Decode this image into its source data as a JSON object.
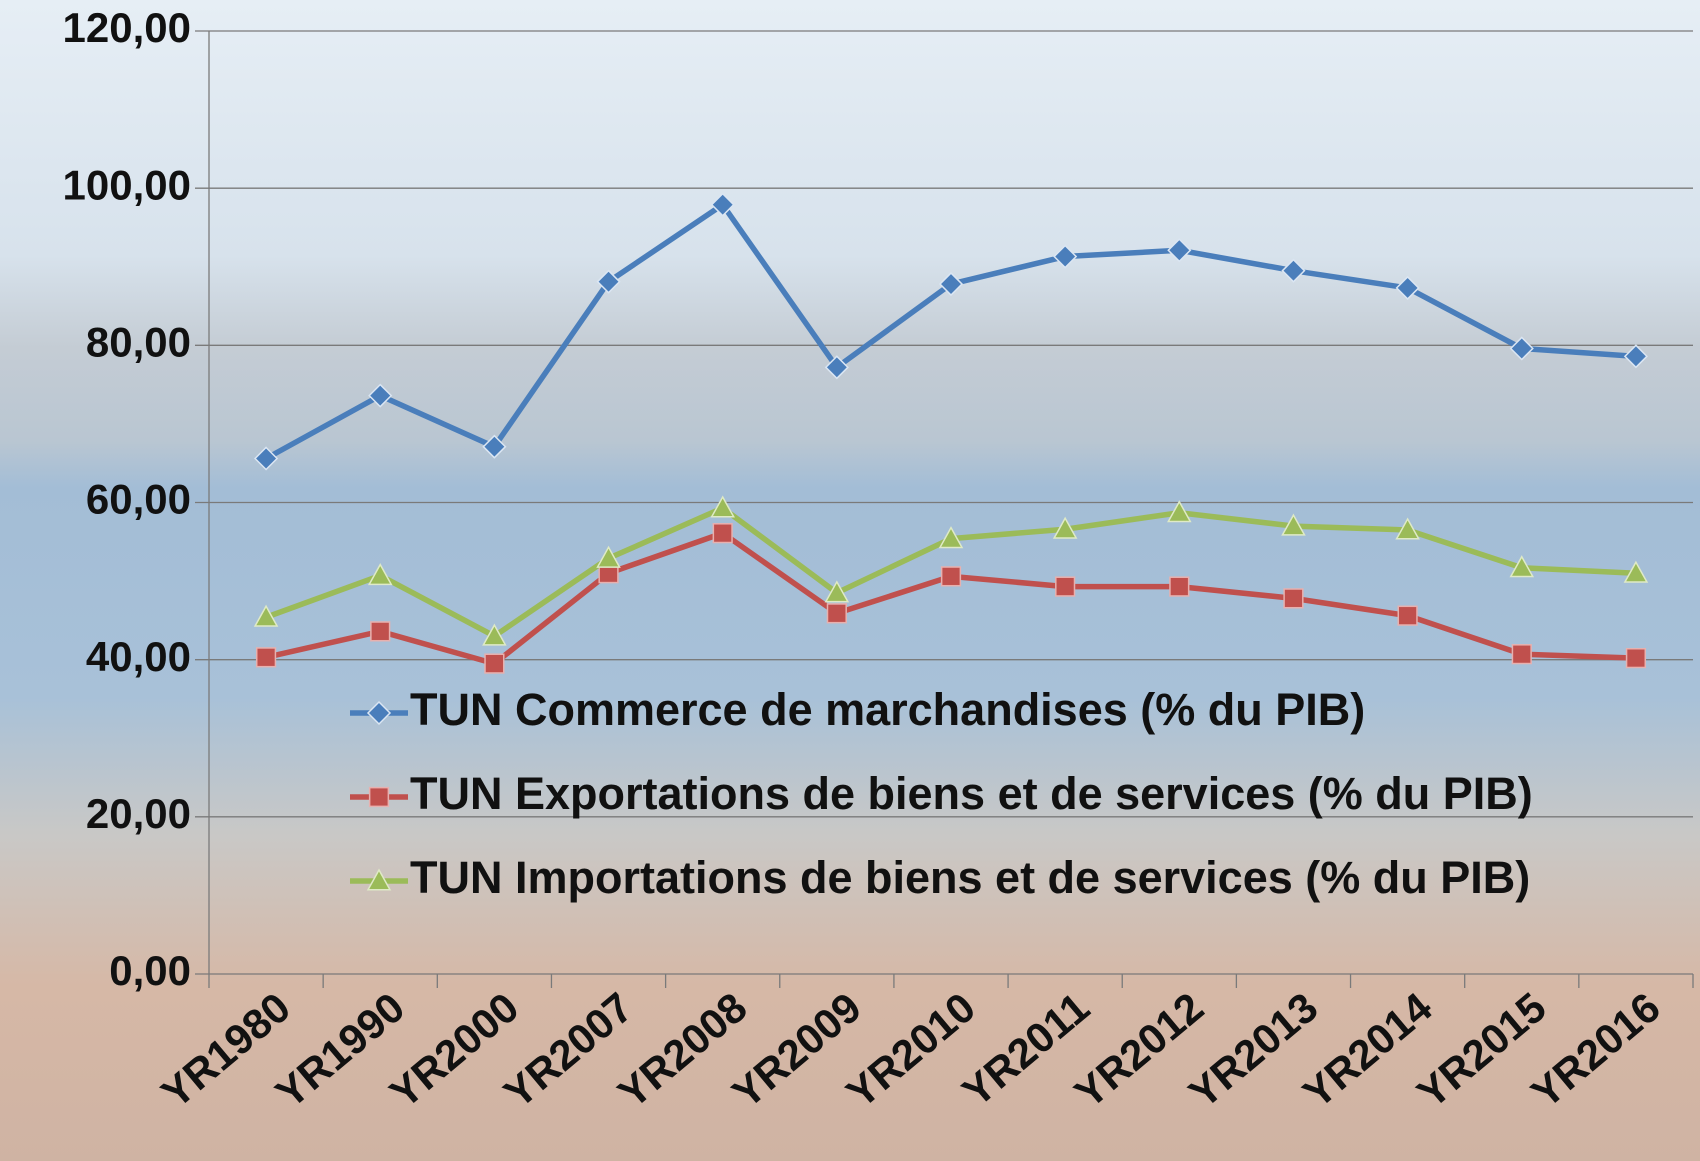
{
  "chart_data": {
    "type": "line",
    "categories": [
      "YR1980",
      "YR1990",
      "YR2000",
      "YR2007",
      "YR2008",
      "YR2009",
      "YR2010",
      "YR2011",
      "YR2012",
      "YR2013",
      "YR2014",
      "YR2015",
      "YR2016"
    ],
    "series": [
      {
        "name": "TUN Commerce de marchandises (% du PIB)",
        "color": "#4a7ebb",
        "marker": "diamond",
        "values": [
          65.6,
          73.6,
          67.1,
          88.1,
          97.9,
          77.2,
          87.8,
          91.3,
          92.1,
          89.5,
          87.3,
          79.6,
          78.6
        ]
      },
      {
        "name": "TUN Exportations de biens et de services (% du PIB)",
        "color": "#c0504d",
        "marker": "square",
        "values": [
          40.3,
          43.6,
          39.5,
          51.0,
          56.1,
          45.9,
          50.6,
          49.3,
          49.3,
          47.8,
          45.6,
          40.7,
          40.2
        ]
      },
      {
        "name": "TUN Importations de biens et de services (% du PIB)",
        "color": "#9bbb59",
        "marker": "triangle",
        "values": [
          45.4,
          50.7,
          43.0,
          52.9,
          59.3,
          48.5,
          55.4,
          56.6,
          58.7,
          57.0,
          56.5,
          51.7,
          51.0
        ]
      }
    ],
    "ylim": [
      0,
      120
    ],
    "yticks": [
      {
        "value": 0,
        "label": "0,00"
      },
      {
        "value": 20,
        "label": "20,00"
      },
      {
        "value": 40,
        "label": "40,00"
      },
      {
        "value": 60,
        "label": "60,00"
      },
      {
        "value": 80,
        "label": "80,00"
      },
      {
        "value": 100,
        "label": "100,00"
      },
      {
        "value": 120,
        "label": "120,00"
      }
    ],
    "grid": true
  }
}
